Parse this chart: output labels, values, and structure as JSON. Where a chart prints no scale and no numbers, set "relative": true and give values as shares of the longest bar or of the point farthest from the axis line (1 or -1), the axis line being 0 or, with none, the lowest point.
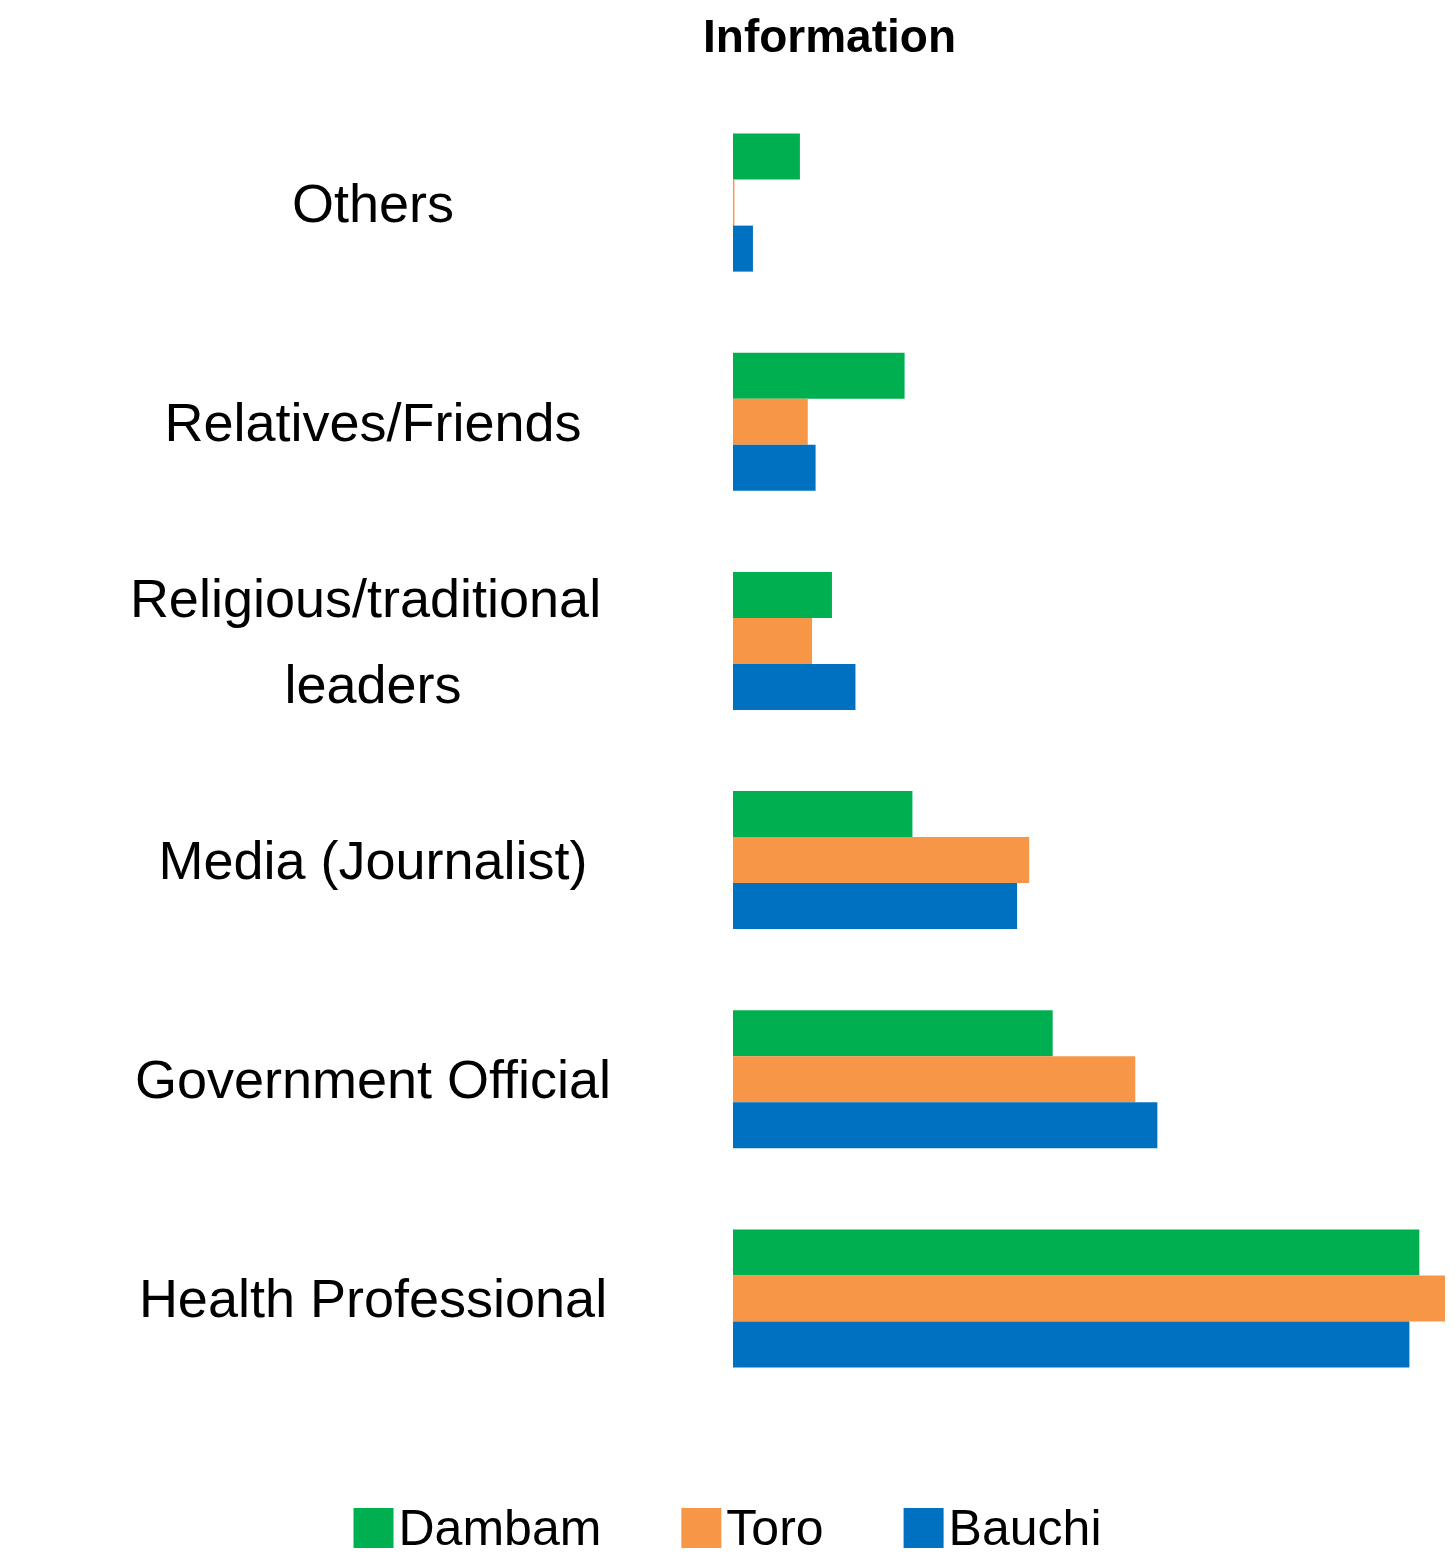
{
  "chart_data": {
    "type": "bar",
    "orientation": "horizontal",
    "relative": true,
    "title": "Information",
    "legend": "bottom",
    "categories": [
      "Others",
      "Relatives/Friends",
      "Religious/traditional leaders",
      "Media (Journalist)",
      "Government Official",
      "Health Professional"
    ],
    "series": [
      {
        "name": "Dambam",
        "color": "#00b050",
        "values": [
          0.094,
          0.241,
          0.139,
          0.252,
          0.449,
          0.964
        ]
      },
      {
        "name": "Toro",
        "color": "#f79646",
        "values": [
          0.002,
          0.105,
          0.111,
          0.416,
          0.565,
          1.0
        ]
      },
      {
        "name": "Bauchi",
        "color": "#0070c0",
        "values": [
          0.028,
          0.116,
          0.172,
          0.399,
          0.596,
          0.95
        ]
      }
    ]
  }
}
